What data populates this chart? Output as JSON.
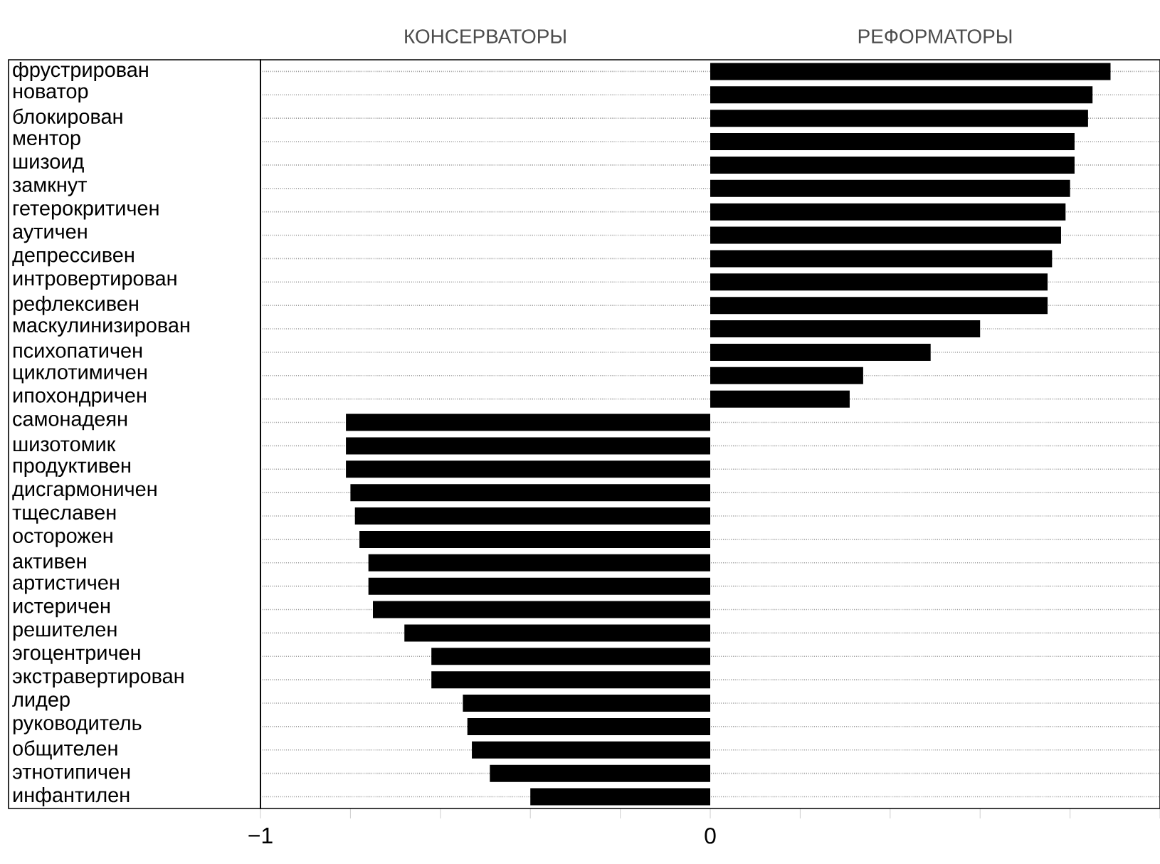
{
  "chart_data": {
    "type": "bar",
    "orientation": "horizontal",
    "categories": [
      "фрустрирован",
      "новатор",
      "блокирован",
      "ментор",
      "шизоид",
      "замкнут",
      "гетерокритичен",
      "аутичен",
      "депрессивен",
      "интровертирован",
      "рефлексивен",
      "маскулинизирован",
      "психопатичен",
      "циклотимичен",
      "ипохондричен",
      "самонадеян",
      "шизотомик",
      "продуктивен",
      "дисгармоничен",
      "тщеславен",
      "осторожен",
      "активен",
      "артистичен",
      "истеричен",
      "решителен",
      "эгоцентричен",
      "экстравертирован",
      "лидер",
      "руководитель",
      "общителен",
      "этнотипичен",
      "инфантилен"
    ],
    "values": [
      0.89,
      0.85,
      0.84,
      0.81,
      0.81,
      0.8,
      0.79,
      0.78,
      0.76,
      0.75,
      0.75,
      0.6,
      0.49,
      0.34,
      0.31,
      -0.81,
      -0.81,
      -0.81,
      -0.8,
      -0.79,
      -0.78,
      -0.76,
      -0.76,
      -0.75,
      -0.68,
      -0.62,
      -0.62,
      -0.55,
      -0.54,
      -0.53,
      -0.49,
      -0.4
    ],
    "color": "#000000",
    "xlim": [
      -1,
      1
    ],
    "xticks": [
      {
        "value": -1,
        "label": "−1"
      },
      {
        "value": -0.8,
        "label": null
      },
      {
        "value": -0.6,
        "label": null
      },
      {
        "value": -0.4,
        "label": null
      },
      {
        "value": -0.2,
        "label": null
      },
      0,
      {
        "value": 0.2,
        "label": null
      },
      {
        "value": 0.4,
        "label": null
      },
      {
        "value": 0.6,
        "label": null
      },
      {
        "value": 0.8,
        "label": null
      },
      {
        "value": 1,
        "label": null
      }
    ],
    "grid": "y",
    "annotations": [
      "КОНСЕРВАТОРЫ",
      "РЕФОРМАТОРЫ"
    ]
  }
}
